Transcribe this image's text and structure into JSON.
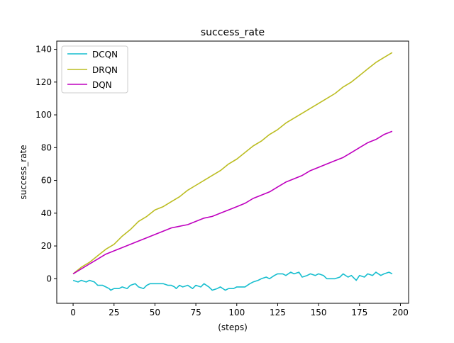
{
  "chart_data": {
    "type": "line",
    "title": "success_rate",
    "xlabel": "(steps)",
    "ylabel": "success_rate",
    "xlim": [
      -10,
      205
    ],
    "ylim": [
      -15,
      145
    ],
    "xticks": [
      0,
      25,
      50,
      75,
      100,
      125,
      150,
      175,
      200
    ],
    "yticks": [
      0,
      20,
      40,
      60,
      80,
      100,
      120,
      140
    ],
    "grid": false,
    "legend": {
      "position": "top-left"
    },
    "series": [
      {
        "name": "DCQN",
        "color": "#17becf",
        "x": [
          0,
          3,
          5,
          8,
          10,
          13,
          15,
          18,
          20,
          22,
          23,
          25,
          28,
          30,
          33,
          35,
          38,
          40,
          43,
          45,
          47,
          50,
          53,
          55,
          58,
          60,
          62,
          63,
          65,
          67,
          70,
          73,
          75,
          78,
          80,
          83,
          85,
          88,
          90,
          93,
          95,
          98,
          100,
          103,
          105,
          108,
          110,
          113,
          115,
          118,
          120,
          123,
          125,
          128,
          130,
          133,
          135,
          138,
          140,
          143,
          145,
          148,
          150,
          153,
          155,
          158,
          160,
          163,
          165,
          168,
          170,
          173,
          175,
          178,
          180,
          183,
          185,
          188,
          190,
          193,
          195
        ],
        "y": [
          -1,
          -2,
          -1,
          -2,
          -1,
          -2,
          -4,
          -4,
          -5,
          -6,
          -7,
          -6,
          -6,
          -5,
          -6,
          -4,
          -3,
          -5,
          -6,
          -4,
          -3,
          -3,
          -3,
          -3,
          -4,
          -4,
          -5,
          -6,
          -4,
          -5,
          -4,
          -6,
          -4,
          -5,
          -3,
          -5,
          -7,
          -6,
          -5,
          -7,
          -6,
          -6,
          -5,
          -5,
          -5,
          -3,
          -2,
          -1,
          0,
          1,
          0,
          2,
          3,
          3,
          2,
          4,
          3,
          4,
          1,
          2,
          3,
          2,
          3,
          2,
          0,
          0,
          0,
          1,
          3,
          1,
          2,
          -1,
          2,
          1,
          3,
          2,
          4,
          2,
          3,
          4,
          3
        ]
      },
      {
        "name": "DRQN",
        "color": "#bcbd22",
        "x": [
          0,
          5,
          10,
          15,
          20,
          25,
          30,
          35,
          40,
          45,
          50,
          55,
          60,
          65,
          70,
          75,
          80,
          85,
          90,
          95,
          100,
          105,
          110,
          115,
          120,
          125,
          130,
          135,
          140,
          145,
          150,
          155,
          160,
          165,
          170,
          175,
          180,
          185,
          190,
          195
        ],
        "y": [
          3,
          7,
          10,
          14,
          18,
          21,
          26,
          30,
          35,
          38,
          42,
          44,
          47,
          50,
          54,
          57,
          60,
          63,
          66,
          70,
          73,
          77,
          81,
          84,
          88,
          91,
          95,
          98,
          101,
          104,
          107,
          110,
          113,
          117,
          120,
          124,
          128,
          132,
          135,
          138
        ]
      },
      {
        "name": "DQN",
        "color": "#bf00bf",
        "x": [
          0,
          5,
          10,
          15,
          20,
          25,
          30,
          35,
          40,
          45,
          50,
          55,
          60,
          65,
          70,
          75,
          80,
          85,
          90,
          95,
          100,
          105,
          110,
          115,
          120,
          125,
          130,
          135,
          140,
          145,
          150,
          155,
          160,
          165,
          170,
          175,
          180,
          185,
          190,
          195
        ],
        "y": [
          3,
          6,
          9,
          12,
          15,
          17,
          19,
          21,
          23,
          25,
          27,
          29,
          31,
          32,
          33,
          35,
          37,
          38,
          40,
          42,
          44,
          46,
          49,
          51,
          53,
          56,
          59,
          61,
          63,
          66,
          68,
          70,
          72,
          74,
          77,
          80,
          83,
          85,
          88,
          90
        ]
      }
    ]
  }
}
